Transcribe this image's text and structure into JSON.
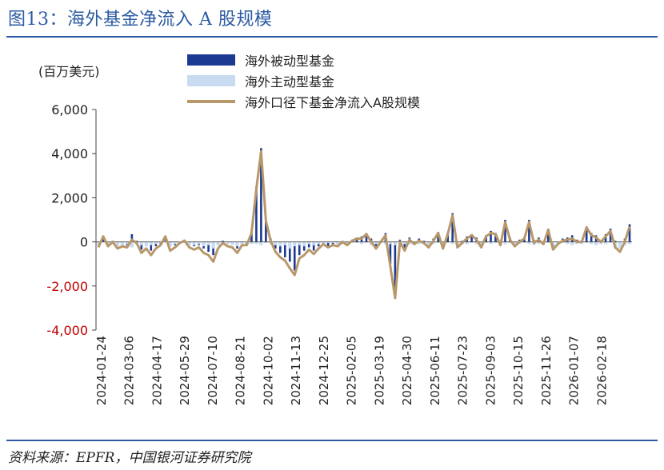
{
  "title": "图13：海外基金净流入 A 股规模",
  "source": "资料来源：EPFR，中国银河证券研究院",
  "chart_data": {
    "type": "bar",
    "unit_label": "(百万美元)",
    "ylim": [
      -4000,
      6000
    ],
    "yticks": [
      6000,
      4000,
      2000,
      0,
      -2000,
      -4000
    ],
    "ytick_labels": [
      "6,000",
      "4,000",
      "2,000",
      "0",
      "-2,000",
      "-4,000"
    ],
    "negative_tick_color": "#c00000",
    "x_tick_labels": [
      "2024-01-24",
      "2024-03-06",
      "2024-04-17",
      "2024-05-29",
      "2024-07-10",
      "2024-08-21",
      "2024-10-02",
      "2024-11-13",
      "2024-12-25",
      "2025-02-05",
      "2025-03-19",
      "2025-04-30",
      "2025-06-11",
      "2025-07-23",
      "2025-09-03",
      "2025-10-15",
      "2025-11-26",
      "2026-01-07",
      "2026-02-18"
    ],
    "legend_position": "top",
    "series": [
      {
        "name": "海外被动型基金",
        "type": "bar",
        "color": "#1c3a92",
        "values": [
          -100,
          150,
          0,
          50,
          -100,
          -50,
          -150,
          350,
          50,
          -350,
          -100,
          -400,
          -200,
          -100,
          200,
          -200,
          -150,
          0,
          100,
          -100,
          -200,
          -150,
          -300,
          -450,
          -600,
          -150,
          50,
          -100,
          -100,
          -300,
          -50,
          -100,
          500,
          2500,
          4250,
          1000,
          150,
          -300,
          -500,
          -700,
          -900,
          -1300,
          -600,
          -400,
          -250,
          -400,
          -200,
          0,
          -200,
          -100,
          -100,
          50,
          -100,
          100,
          200,
          250,
          400,
          150,
          -200,
          50,
          400,
          -1000,
          -2400,
          100,
          -300,
          200,
          -50,
          150,
          50,
          -100,
          150,
          450,
          -200,
          400,
          1300,
          -100,
          50,
          250,
          350,
          200,
          -100,
          300,
          500,
          400,
          0,
          1000,
          200,
          -50,
          100,
          200,
          1000,
          100,
          200,
          0,
          600,
          -200,
          -50,
          150,
          200,
          300,
          100,
          50,
          700,
          400,
          300,
          50,
          350,
          600,
          50,
          -150,
          150,
          800
        ]
      },
      {
        "name": "海外主动型基金",
        "type": "bar",
        "color": "#c8dbf0",
        "values": [
          -150,
          0,
          -100,
          -50,
          -200,
          -150,
          -100,
          -250,
          -100,
          -150,
          -200,
          -150,
          -100,
          -50,
          50,
          -200,
          -100,
          -50,
          -50,
          -150,
          -150,
          -100,
          -200,
          -150,
          -300,
          -150,
          -100,
          -100,
          -150,
          -200,
          -100,
          -50,
          -100,
          -100,
          -150,
          -50,
          -100,
          -150,
          -200,
          -150,
          -300,
          -200,
          -150,
          -200,
          -100,
          -150,
          -100,
          -100,
          -50,
          -50,
          -100,
          -50,
          -100,
          -50,
          -50,
          -100,
          -50,
          -150,
          -100,
          -50,
          -100,
          -100,
          -150,
          -100,
          -100,
          -100,
          -50,
          -100,
          -100,
          -150,
          -100,
          -50,
          -100,
          -50,
          -100,
          -150,
          -100,
          -100,
          -50,
          -100,
          -150,
          -50,
          -100,
          -50,
          -150,
          -100,
          -50,
          -150,
          -100,
          -50,
          -100,
          -150,
          -100,
          -100,
          -50,
          -150,
          -100,
          -50,
          -100,
          -150,
          -100,
          -100,
          -50,
          -100,
          -150,
          -100,
          -100,
          -50,
          -300,
          -300,
          -150,
          -100
        ]
      },
      {
        "name": "海外口径下基金净流入A股规模",
        "type": "line",
        "color": "#b8976a",
        "values": [
          -250,
          250,
          -200,
          0,
          -300,
          -200,
          -250,
          100,
          -50,
          -500,
          -300,
          -600,
          -300,
          -150,
          250,
          -400,
          -250,
          -50,
          50,
          -250,
          -350,
          -250,
          -500,
          -600,
          -900,
          -300,
          -50,
          -200,
          -250,
          -500,
          -150,
          -150,
          400,
          2400,
          4100,
          950,
          50,
          -450,
          -700,
          -850,
          -1200,
          -1500,
          -750,
          -600,
          -350,
          -550,
          -300,
          -100,
          -250,
          -150,
          -200,
          0,
          -150,
          50,
          150,
          150,
          350,
          0,
          -300,
          0,
          300,
          -1100,
          -2550,
          0,
          -400,
          100,
          -100,
          50,
          -50,
          -250,
          50,
          400,
          -300,
          350,
          1200,
          -250,
          -50,
          150,
          300,
          100,
          -250,
          250,
          400,
          350,
          -150,
          900,
          100,
          -200,
          0,
          150,
          900,
          -50,
          100,
          -100,
          550,
          -350,
          -100,
          50,
          100,
          150,
          0,
          0,
          650,
          300,
          200,
          0,
          250,
          500,
          -250,
          -450,
          0,
          700
        ]
      }
    ]
  }
}
